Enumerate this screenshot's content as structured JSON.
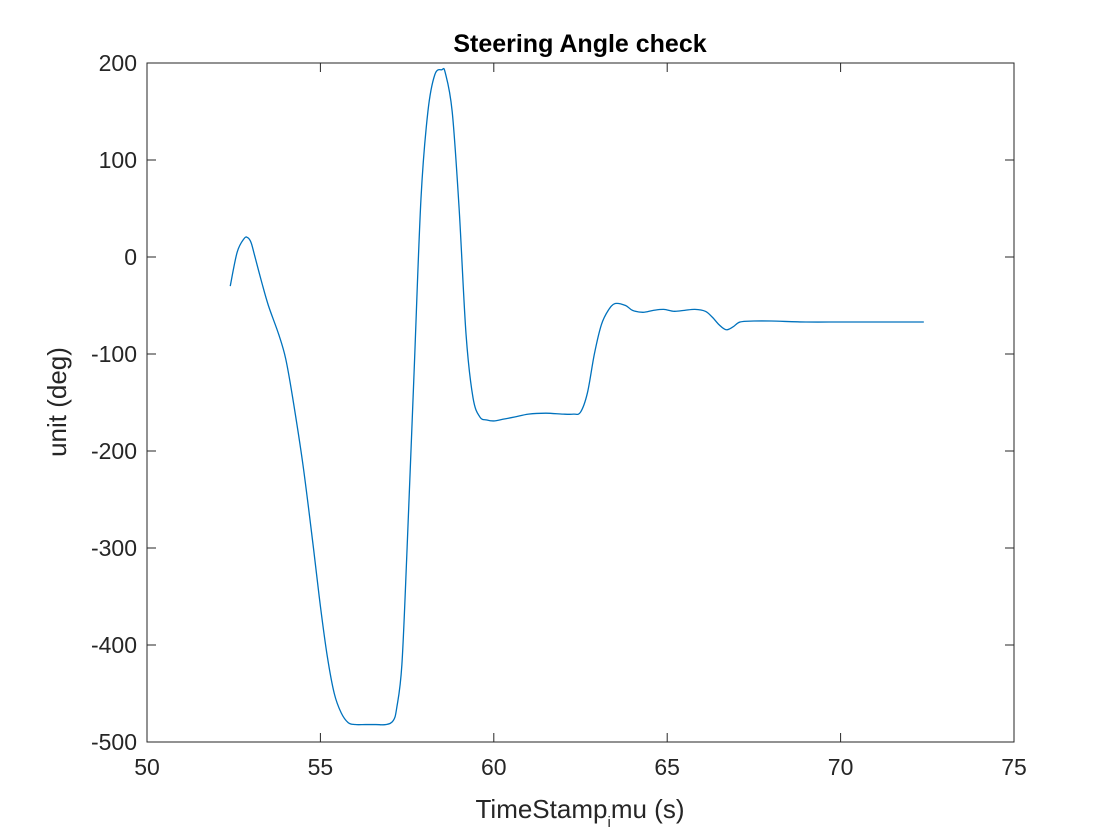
{
  "chart_data": {
    "type": "line",
    "title": "Steering Angle check",
    "xlabel": {
      "main": "TimeStamp",
      "subscript": "i",
      "rest": "mu (s)"
    },
    "ylabel": "unit (deg)",
    "xlim": [
      50,
      75
    ],
    "ylim": [
      -500,
      200
    ],
    "x_ticks": [
      "50",
      "55",
      "60",
      "65",
      "70",
      "75"
    ],
    "y_ticks": [
      "200",
      "100",
      "0",
      "-100",
      "-200",
      "-300",
      "-400",
      "-500"
    ],
    "grid": false,
    "line_color": "#0072BD",
    "series": [
      {
        "x": [
          52.4,
          52.6,
          52.8,
          52.9,
          53.0,
          53.1,
          53.3,
          53.5,
          53.8,
          54.0,
          54.2,
          54.5,
          54.8,
          55.0,
          55.2,
          55.4,
          55.6,
          55.8,
          56.0,
          56.3,
          56.6,
          56.9,
          57.1,
          57.2,
          57.35,
          57.5,
          57.7,
          57.9,
          58.1,
          58.3,
          58.5,
          58.6,
          58.8,
          59.0,
          59.2,
          59.4,
          59.6,
          59.8,
          60.0,
          60.3,
          60.6,
          61.0,
          61.5,
          62.0,
          62.3,
          62.5,
          62.7,
          62.9,
          63.1,
          63.3,
          63.5,
          63.8,
          64.0,
          64.3,
          64.6,
          64.9,
          65.2,
          65.5,
          65.8,
          66.1,
          66.3,
          66.5,
          66.7,
          66.9,
          67.1,
          67.5,
          68.0,
          69.0,
          70.0,
          71.0,
          72.0,
          72.4
        ],
        "y": [
          -30,
          5,
          19,
          20,
          15,
          2,
          -25,
          -50,
          -80,
          -105,
          -145,
          -215,
          -300,
          -360,
          -412,
          -450,
          -470,
          -480,
          -482,
          -482,
          -482,
          -482,
          -478,
          -465,
          -420,
          -300,
          -120,
          60,
          150,
          188,
          193,
          190,
          150,
          50,
          -80,
          -145,
          -165,
          -168,
          -169,
          -167,
          -165,
          -162,
          -161,
          -162,
          -162,
          -160,
          -140,
          -100,
          -70,
          -55,
          -48,
          -50,
          -55,
          -57,
          -55,
          -54,
          -56,
          -55,
          -54,
          -56,
          -62,
          -70,
          -75,
          -72,
          -67,
          -66,
          -66,
          -67,
          -67,
          -67,
          -67,
          -67
        ]
      }
    ]
  }
}
